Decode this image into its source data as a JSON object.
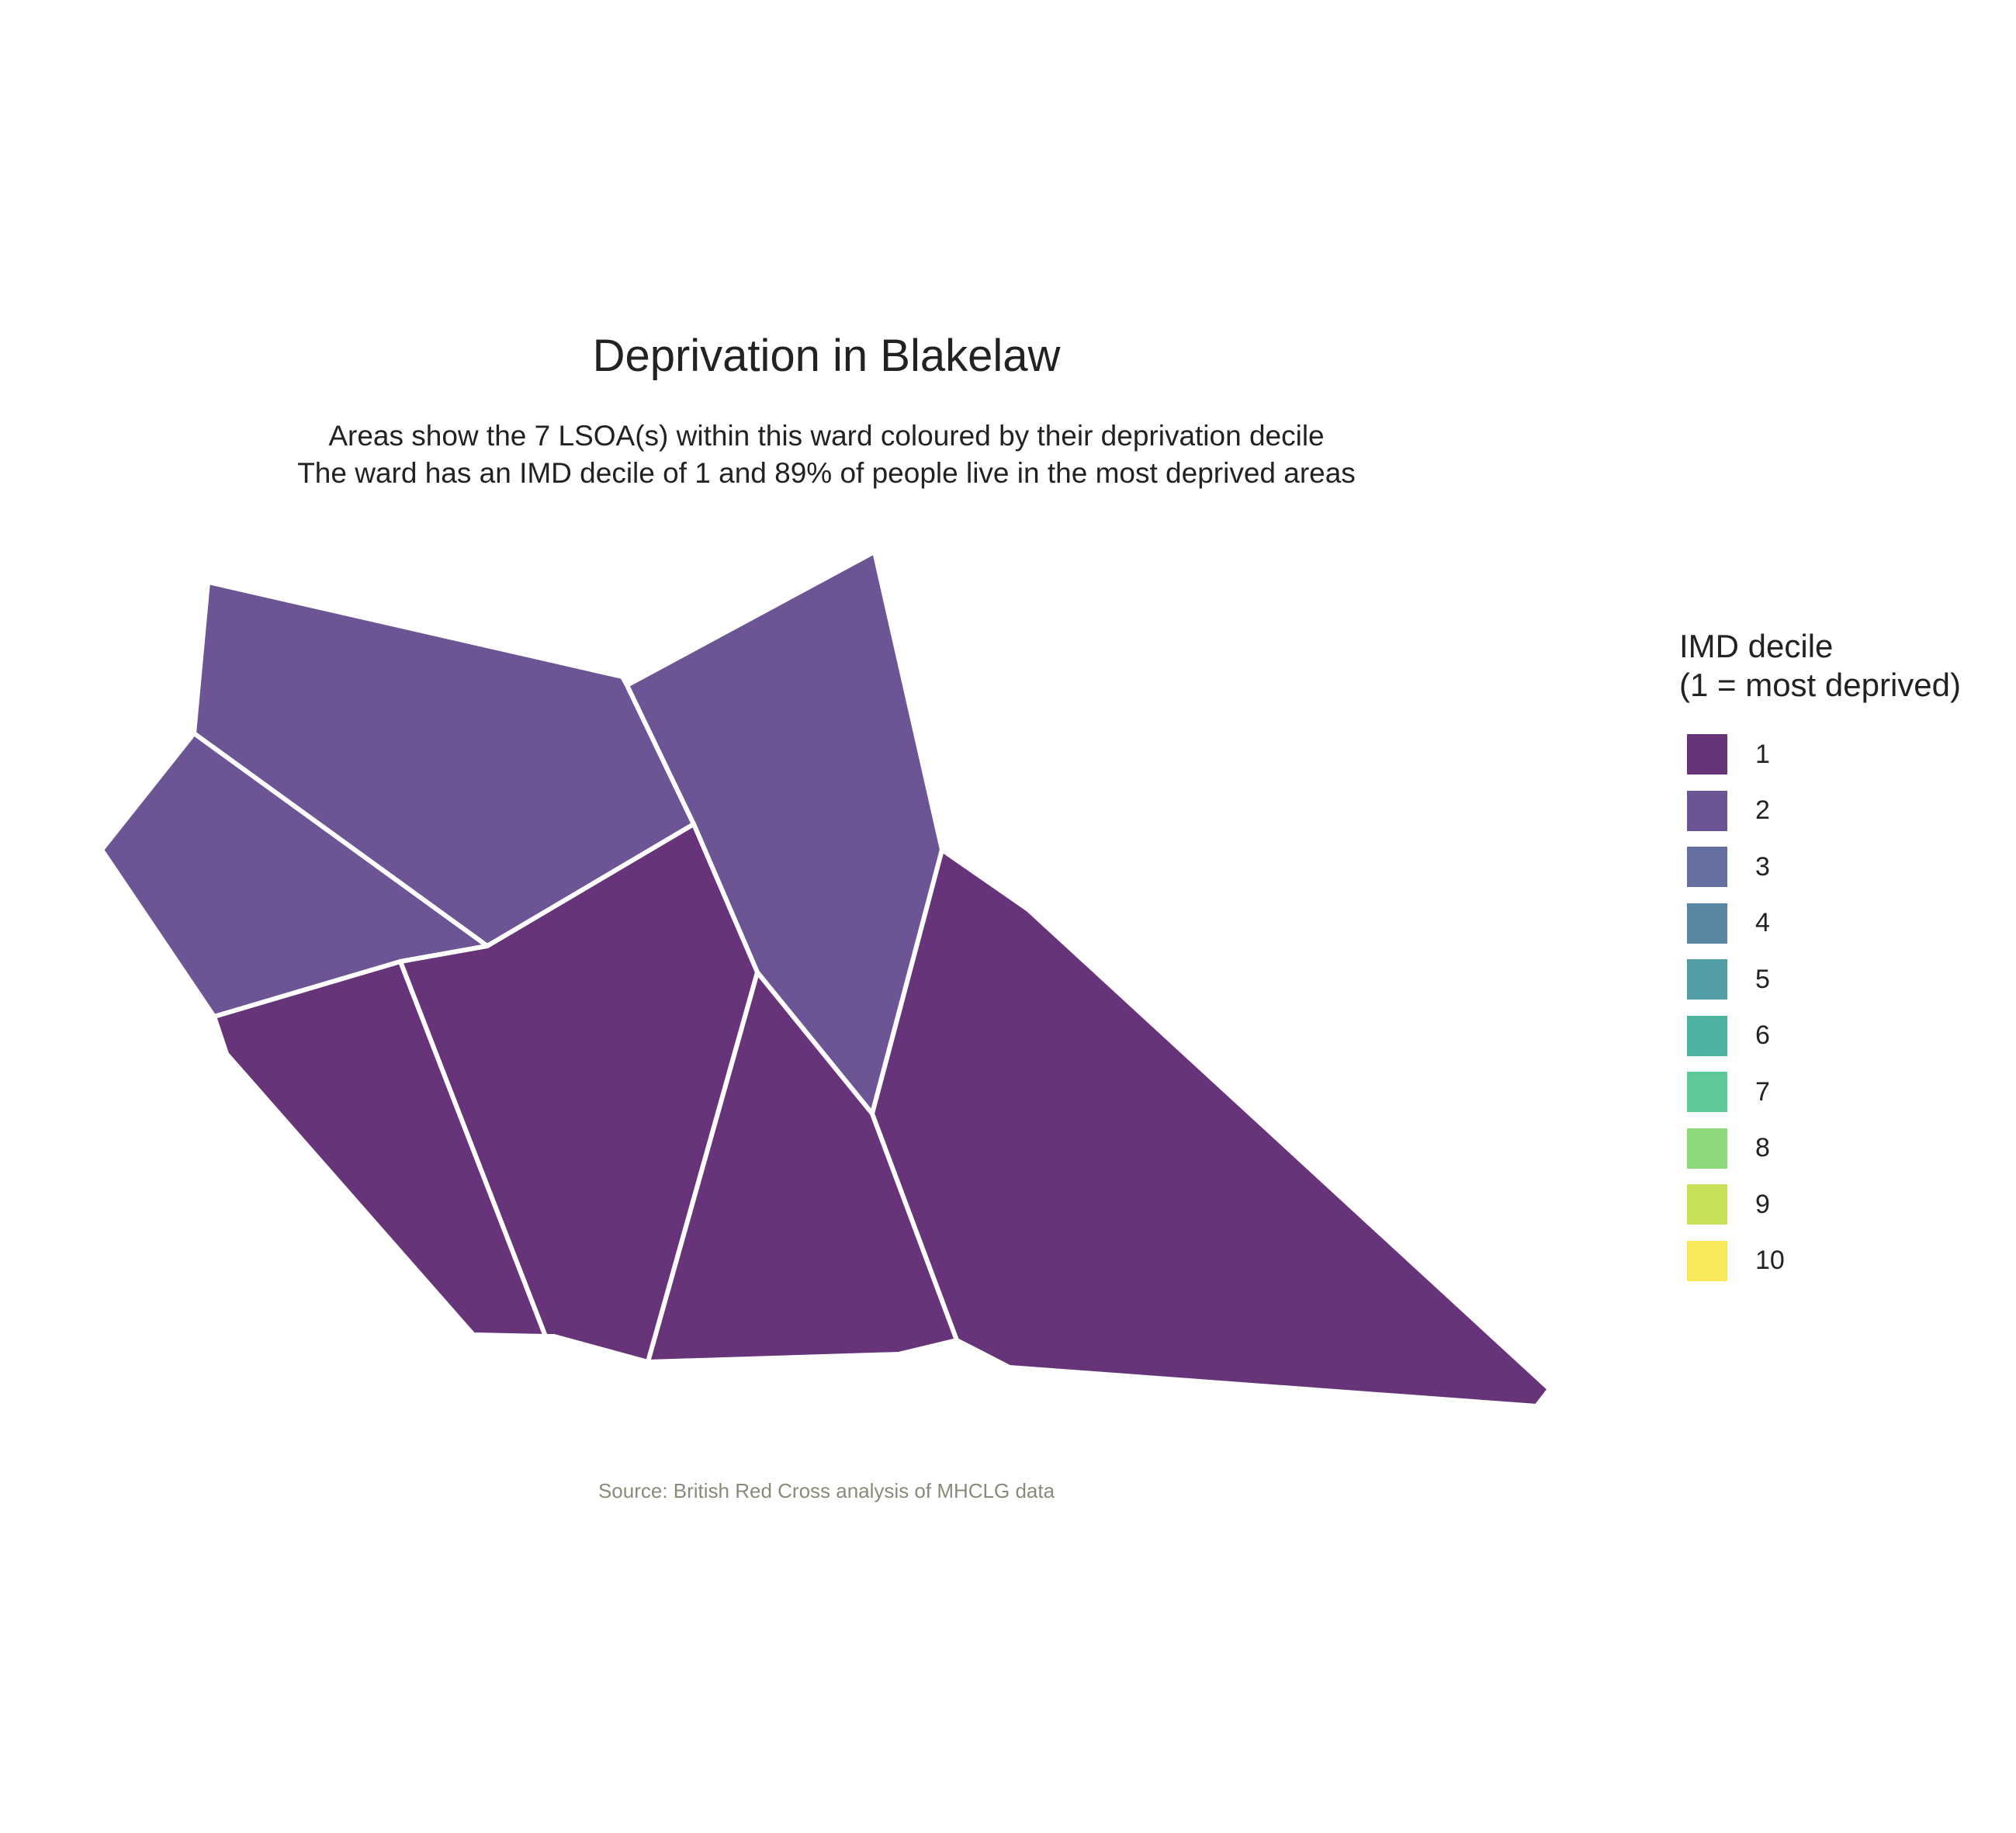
{
  "title": "Deprivation in Blakelaw",
  "subtitle": [
    "Areas show the 7 LSOA(s) within this ward coloured by their deprivation decile",
    "The ward has an IMD decile of 1 and 89% of people live in the most deprived areas"
  ],
  "caption": "Source: British Red Cross analysis of MHCLG data",
  "legend": {
    "title": [
      "IMD decile",
      "(1 = most deprived)"
    ],
    "items": [
      {
        "label": "1",
        "color": "#67347A"
      },
      {
        "label": "2",
        "color": "#6D5494"
      },
      {
        "label": "3",
        "color": "#656FA0"
      },
      {
        "label": "4",
        "color": "#5A87A3"
      },
      {
        "label": "5",
        "color": "#529CA4"
      },
      {
        "label": "6",
        "color": "#4EB2A0"
      },
      {
        "label": "7",
        "color": "#5EC896"
      },
      {
        "label": "8",
        "color": "#8DD87C"
      },
      {
        "label": "9",
        "color": "#C6E05A"
      },
      {
        "label": "10",
        "color": "#F9E95B"
      }
    ]
  },
  "map": {
    "areas": [
      {
        "name": "lsoa-north-west",
        "decile": 2
      },
      {
        "name": "lsoa-west",
        "decile": 2
      },
      {
        "name": "lsoa-north-east",
        "decile": 2
      },
      {
        "name": "lsoa-south-west",
        "decile": 1
      },
      {
        "name": "lsoa-central",
        "decile": 1
      },
      {
        "name": "lsoa-south-central",
        "decile": 1
      },
      {
        "name": "lsoa-east",
        "decile": 1
      }
    ]
  }
}
